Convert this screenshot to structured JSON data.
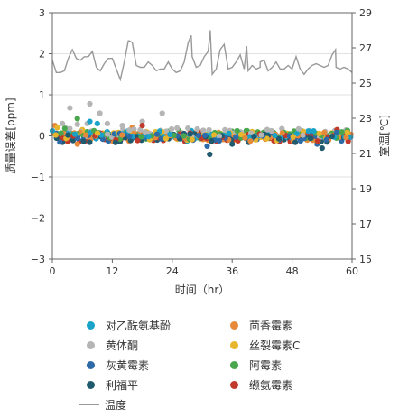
{
  "chart_data": {
    "type": "scatter",
    "xlabel": "时间（hr）",
    "ylabel": "质量误差[ppm]",
    "y2label": "室温[℃]",
    "xlim": [
      0,
      60
    ],
    "ylim": [
      -3,
      3
    ],
    "y2lim": [
      15,
      29
    ],
    "x_ticks": [
      0,
      12,
      24,
      36,
      48,
      60
    ],
    "y_ticks": [
      -3,
      -2,
      -1,
      0,
      1,
      2,
      3
    ],
    "y2_ticks": [
      15,
      17,
      19,
      21,
      23,
      25,
      27,
      29
    ],
    "grid": "horizontal",
    "series": [
      {
        "name": "对乙酰氨基酚",
        "color": "#1aa3c9",
        "offset": 0.03,
        "outliers": [
          [
            7.5,
            0.35
          ],
          [
            9,
            0.3
          ],
          [
            27,
            -0.12
          ]
        ]
      },
      {
        "name": "茴香霉素",
        "color": "#e8893a",
        "offset": -0.02,
        "outliers": [
          [
            0.5,
            0.25
          ],
          [
            5,
            -0.2
          ],
          [
            16,
            0.2
          ]
        ]
      },
      {
        "name": "黄体酮",
        "color": "#b5b5b5",
        "offset": 0.08,
        "outliers": [
          [
            3.5,
            0.68
          ],
          [
            7.5,
            0.78
          ],
          [
            9.5,
            0.55
          ],
          [
            2,
            0.3
          ],
          [
            11,
            0.3
          ],
          [
            14,
            0.25
          ],
          [
            18,
            0.35
          ],
          [
            22,
            0.55
          ],
          [
            7,
            0.3
          ],
          [
            5,
            0.28
          ]
        ]
      },
      {
        "name": "丝裂霉素C",
        "color": "#e8b62c",
        "offset": 0.0,
        "outliers": [
          [
            1,
            0.2
          ],
          [
            6,
            0.15
          ],
          [
            40,
            0.1
          ]
        ]
      },
      {
        "name": "灰黄霉素",
        "color": "#2d6aa8",
        "offset": -0.02,
        "outliers": [
          [
            1.5,
            -0.15
          ],
          [
            31,
            -0.25
          ],
          [
            53,
            -0.2
          ]
        ]
      },
      {
        "name": "阿霉素",
        "color": "#4aa64d",
        "offset": 0.02,
        "outliers": [
          [
            5,
            0.42
          ],
          [
            2.5,
            0.18
          ],
          [
            39,
            0.12
          ]
        ]
      },
      {
        "name": "利福平",
        "color": "#1f5a6e",
        "offset": -0.05,
        "outliers": [
          [
            31.5,
            -0.45
          ],
          [
            54,
            -0.3
          ],
          [
            36,
            -0.2
          ]
        ]
      },
      {
        "name": "缬氨霉素",
        "color": "#c0392b",
        "offset": -0.03,
        "outliers": [
          [
            18,
            0.25
          ],
          [
            30,
            0.1
          ],
          [
            57,
            0.15
          ]
        ]
      }
    ],
    "temperature": {
      "name": "温度",
      "color": "#999999",
      "axis": "right",
      "x": [
        0,
        0.8,
        1.6,
        2.4,
        3.2,
        4,
        4.8,
        5.6,
        6.4,
        7.2,
        8,
        8.8,
        9.6,
        10.4,
        11.2,
        12,
        12.8,
        13.6,
        14.4,
        15.2,
        16,
        16.8,
        17.6,
        18.4,
        19.2,
        20,
        20.8,
        21.6,
        22.4,
        23.2,
        24,
        24.8,
        25.6,
        26.4,
        27.2,
        28,
        28.8,
        29.6,
        30.4,
        31.2,
        32,
        32.8,
        33.6,
        34.4,
        35.2,
        36,
        36.8,
        37.6,
        38.4,
        39.2,
        40,
        40.8,
        41.6,
        42.4,
        43.2,
        44,
        44.8,
        45.6,
        46.4,
        47.2,
        48,
        48.8,
        49.6,
        50.4,
        51.2,
        52,
        52.8,
        53.6,
        54.4,
        55.2,
        56,
        56.8,
        57.6,
        58.4,
        59.2,
        60
      ],
      "y": [
        26.3,
        25.6,
        25.6,
        25.7,
        26.4,
        26.9,
        26.4,
        26.3,
        26.5,
        26.5,
        26.8,
        25.9,
        25.7,
        26.1,
        26.4,
        26.4,
        25.8,
        25.2,
        26.2,
        27.4,
        27.3,
        26.0,
        25.9,
        25.9,
        26.2,
        26.0,
        25.7,
        25.8,
        25.8,
        26.2,
        25.8,
        25.6,
        25.7,
        26.2,
        27.3,
        26.5,
        25.9,
        26.0,
        26.5,
        26.8,
        25.5,
        25.8,
        26.9,
        27.2,
        25.8,
        25.9,
        26.2,
        26.6,
        25.8,
        25.7,
        26.0,
        25.8,
        25.9,
        26.3,
        25.7,
        25.9,
        26.2,
        25.8,
        25.8,
        26.0,
        25.8,
        26.5,
        25.8,
        25.5,
        25.8,
        26.0,
        26.1,
        26.0,
        25.9,
        26.0,
        26.6,
        25.9,
        25.8,
        25.9,
        25.8,
        25.6
      ],
      "spikes": [
        [
          31.6,
          28.0
        ],
        [
          27.8,
          27.7
        ],
        [
          15.4,
          27.4
        ],
        [
          38.9,
          27.1
        ],
        [
          41.6,
          26.2
        ],
        [
          56.7,
          26.9
        ]
      ]
    }
  }
}
